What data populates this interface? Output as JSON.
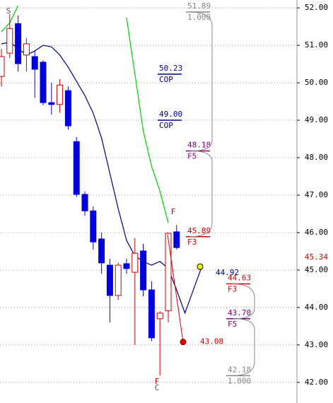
{
  "chart_data": {
    "type": "candlestick",
    "ylim": [
      41.45,
      52.21
    ],
    "yticks": [
      {
        "value": 42,
        "label": "42.00"
      },
      {
        "value": 43,
        "label": "43.00"
      },
      {
        "value": 44,
        "label": "44.00"
      },
      {
        "value": 45,
        "label": "45.00"
      },
      {
        "value": 46,
        "label": "46.00"
      },
      {
        "value": 47,
        "label": "47.00"
      },
      {
        "value": 48,
        "label": "48.00"
      },
      {
        "value": 49,
        "label": "49.00"
      },
      {
        "value": 50,
        "label": "50.00"
      },
      {
        "value": 51,
        "label": "51.00"
      },
      {
        "value": 52,
        "label": "52.00"
      }
    ],
    "grid": true,
    "up_color": "#cc0000",
    "down_color": "#0000dd",
    "open": [
      50.17,
      50.79,
      51.58,
      50.74,
      50.7,
      50.55,
      49.47,
      49.42,
      49.79,
      48.43,
      47.02,
      46.58,
      45.83,
      45.13,
      44.32,
      45.17,
      44.94,
      45.51,
      44.47,
      43.7,
      43.91,
      46.02,
      null,
      null,
      null
    ],
    "high": [
      50.9,
      51.83,
      51.8,
      51.2,
      50.85,
      50.6,
      50.0,
      50.1,
      49.9,
      48.55,
      47.1,
      46.7,
      46.0,
      45.3,
      45.2,
      45.3,
      45.85,
      45.7,
      44.7,
      43.9,
      46.0,
      46.2,
      null,
      null,
      null
    ],
    "low": [
      49.9,
      50.66,
      50.3,
      50.3,
      49.6,
      49.4,
      49.15,
      49.2,
      48.75,
      46.95,
      46.45,
      45.55,
      44.9,
      43.6,
      44.2,
      44.9,
      43.0,
      44.3,
      43.1,
      42.18,
      43.6,
      45.55,
      null,
      null,
      null
    ],
    "close": [
      50.7,
      51.45,
      50.51,
      51.04,
      50.36,
      49.47,
      49.42,
      49.94,
      48.85,
      47.02,
      46.58,
      45.75,
      45.19,
      44.32,
      45.13,
      45.04,
      45.45,
      44.47,
      43.19,
      43.85,
      45.98,
      45.6,
      null,
      null,
      null
    ],
    "series": [
      {
        "color": "#000080",
        "values": [
          51.04,
          51.08,
          50.92,
          50.74,
          50.85,
          51.0,
          50.96,
          50.74,
          50.42,
          50.04,
          49.66,
          49.19,
          48.53,
          47.58,
          46.64,
          45.79,
          45.38,
          45.23,
          45.13,
          45.23,
          45.04,
          44.47,
          43.85,
          44.47,
          45.08
        ]
      },
      {
        "color": "#00cc00",
        "values": [
          51.36,
          51.6,
          52.06,
          null,
          null,
          null,
          null,
          null,
          null,
          null,
          null,
          null,
          null,
          null,
          null,
          51.74,
          50.23,
          48.72,
          47.77,
          47.11,
          46.26,
          null,
          null,
          null,
          null
        ]
      }
    ],
    "annotations": [
      {
        "value": 51.89,
        "label": "51.89",
        "sub": "1.000",
        "color": "#888888"
      },
      {
        "value": 50.23,
        "label": "50.23",
        "sub": "COP",
        "color": "#000080"
      },
      {
        "value": 49.0,
        "label": "49.00",
        "sub": "COP",
        "color": "#000080"
      },
      {
        "value": 48.18,
        "label": "48.18",
        "sub": "F5",
        "color": "#800080"
      },
      {
        "value": 45.89,
        "label": "45.89",
        "sub": "F3",
        "color": "#cc0000"
      },
      {
        "value": 44.63,
        "label": "44.63",
        "sub": "F3",
        "color": "#cc0000"
      },
      {
        "value": 43.7,
        "label": "43.70",
        "sub": "F5",
        "color": "#800080"
      },
      {
        "value": 42.18,
        "label": "42.18",
        "sub": "1.000",
        "color": "#888888"
      }
    ],
    "target_high": {
      "value": 44.92,
      "label": "44.92",
      "color": "#000080"
    },
    "target_low": {
      "value": 43.08,
      "label": "43.08",
      "color": "#cc0000"
    },
    "last_price": {
      "value": 45.34,
      "label": "45.34",
      "color": "#cc0000"
    },
    "markers": [
      "S",
      "F",
      "F",
      "C"
    ]
  }
}
